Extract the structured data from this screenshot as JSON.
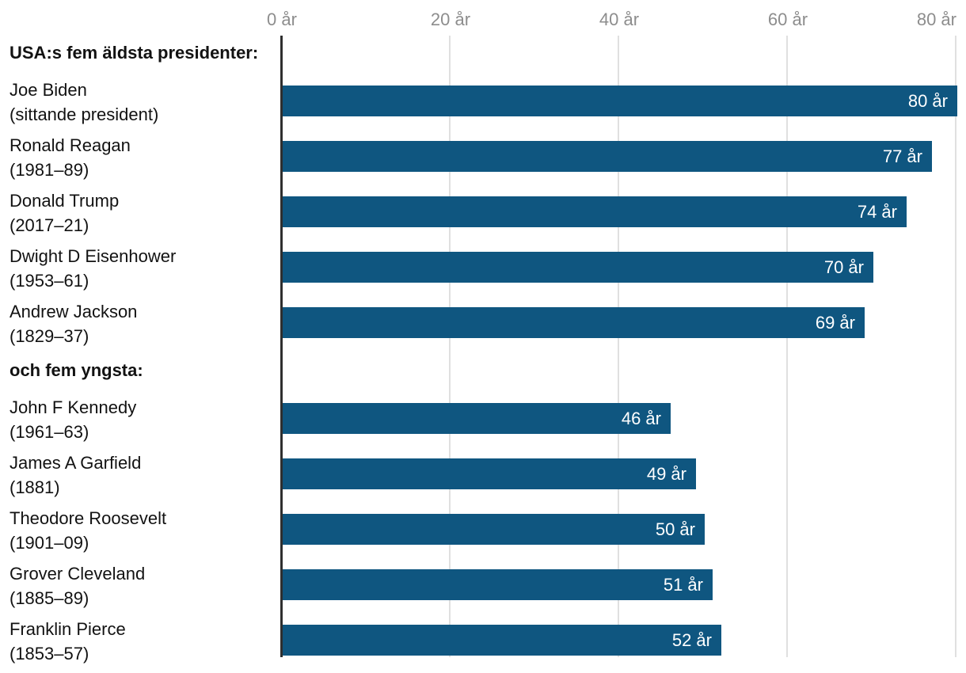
{
  "chart_data": {
    "type": "bar",
    "orientation": "horizontal",
    "title": "",
    "xlabel": "",
    "ylabel": "",
    "unit_suffix": " år",
    "xlim": [
      0,
      80
    ],
    "grid": "vertical",
    "x_axis": {
      "ticks": [
        {
          "label": "0 år",
          "value": 0
        },
        {
          "label": "20 år",
          "value": 20
        },
        {
          "label": "40 år",
          "value": 40
        },
        {
          "label": "60 år",
          "value": 60
        },
        {
          "label": "80 år",
          "value": 80
        }
      ]
    },
    "sections": [
      {
        "header": "USA:s fem äldsta presidenter:",
        "rows": [
          {
            "name": "Joe Biden",
            "detail": "(sittande president)",
            "value": 80,
            "value_label": "80 år"
          },
          {
            "name": "Ronald Reagan",
            "detail": "(1981–89)",
            "value": 77,
            "value_label": "77 år"
          },
          {
            "name": "Donald Trump",
            "detail": "(2017–21)",
            "value": 74,
            "value_label": "74 år"
          },
          {
            "name": "Dwight D Eisenhower",
            "detail": "(1953–61)",
            "value": 70,
            "value_label": "70 år"
          },
          {
            "name": "Andrew Jackson",
            "detail": "(1829–37)",
            "value": 69,
            "value_label": "69 år"
          }
        ]
      },
      {
        "header": "och fem yngsta:",
        "rows": [
          {
            "name": "John F Kennedy",
            "detail": "(1961–63)",
            "value": 46,
            "value_label": "46 år"
          },
          {
            "name": "James A Garfield",
            "detail": "(1881)",
            "value": 49,
            "value_label": "49 år"
          },
          {
            "name": "Theodore Roosevelt",
            "detail": "(1901–09)",
            "value": 50,
            "value_label": "50 år"
          },
          {
            "name": "Grover Cleveland",
            "detail": "(1885–89)",
            "value": 51,
            "value_label": "51 år"
          },
          {
            "name": "Franklin Pierce",
            "detail": "(1853–57)",
            "value": 52,
            "value_label": "52 år"
          }
        ]
      }
    ],
    "colors": {
      "bar": "#0f5680",
      "grid": "#e0e0e0",
      "axis": "#2f2f2f",
      "tick_text": "#8d8d8d",
      "label_text": "#121212",
      "bar_value_text": "#ffffff",
      "background": "#ffffff"
    }
  }
}
